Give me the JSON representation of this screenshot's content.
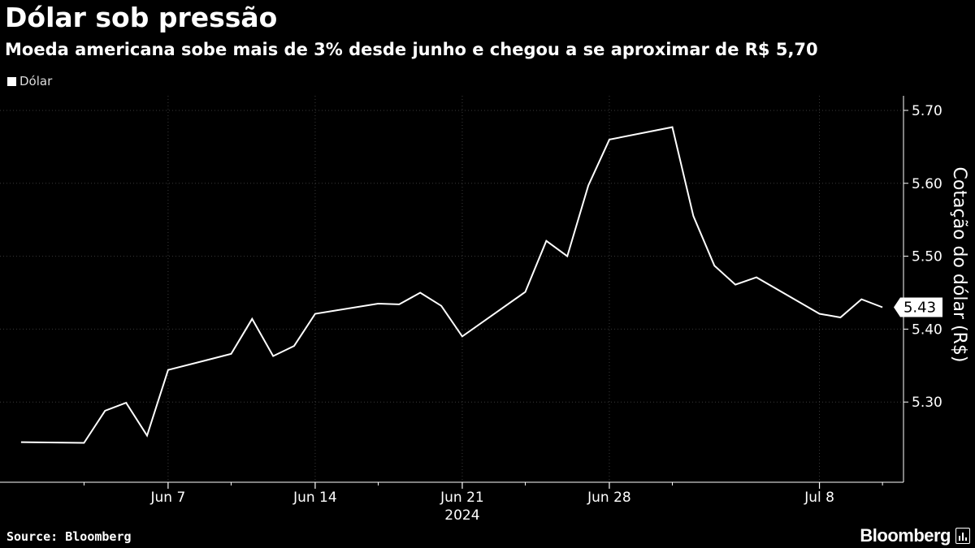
{
  "title": "Dólar sob pressão",
  "subtitle": "Moeda americana sobe mais de 3% desde junho e chegou a se aproximar de R$ 5,70",
  "source": "Source: Bloomberg",
  "logo": {
    "text": "Bloomberg",
    "icon": "bloomberg-chart-icon"
  },
  "colors": {
    "background": "#000000",
    "line": "#ffffff",
    "grid": "#444444",
    "text": "#ffffff"
  },
  "chart_data": {
    "type": "line",
    "title": "Dólar sob pressão",
    "subtitle": "Moeda americana sobe mais de 3% desde junho e chegou a se aproximar de R$ 5,70",
    "ylabel": "Cotação do dólar (R$)",
    "xlabel": "2024",
    "ylim": [
      5.19,
      5.72
    ],
    "y_ticks": [
      "5.30",
      "5.40",
      "5.50",
      "5.60",
      "5.70"
    ],
    "y_axis_position": "right",
    "x_ticks": [
      {
        "label": "Jun 7",
        "date": "2024-06-07"
      },
      {
        "label": "Jun 14",
        "date": "2024-06-14"
      },
      {
        "label": "Jun 21",
        "date": "2024-06-21"
      },
      {
        "label": "Jun 28",
        "date": "2024-06-28"
      },
      {
        "label": "Jul 8",
        "date": "2024-07-08"
      }
    ],
    "year_label": "2024",
    "legend": [
      "Dólar"
    ],
    "legend_position": "top-left",
    "grid": true,
    "last_value_label": "5.43",
    "series": [
      {
        "name": "Dólar",
        "points": [
          {
            "date": "2024-05-31",
            "value": 5.245
          },
          {
            "date": "2024-06-03",
            "value": 5.244
          },
          {
            "date": "2024-06-04",
            "value": 5.288
          },
          {
            "date": "2024-06-05",
            "value": 5.299
          },
          {
            "date": "2024-06-06",
            "value": 5.254
          },
          {
            "date": "2024-06-07",
            "value": 5.344
          },
          {
            "date": "2024-06-10",
            "value": 5.366
          },
          {
            "date": "2024-06-11",
            "value": 5.414
          },
          {
            "date": "2024-06-12",
            "value": 5.363
          },
          {
            "date": "2024-06-13",
            "value": 5.377
          },
          {
            "date": "2024-06-14",
            "value": 5.421
          },
          {
            "date": "2024-06-17",
            "value": 5.435
          },
          {
            "date": "2024-06-18",
            "value": 5.434
          },
          {
            "date": "2024-06-19",
            "value": 5.45
          },
          {
            "date": "2024-06-20",
            "value": 5.432
          },
          {
            "date": "2024-06-21",
            "value": 5.39
          },
          {
            "date": "2024-06-24",
            "value": 5.451
          },
          {
            "date": "2024-06-25",
            "value": 5.521
          },
          {
            "date": "2024-06-26",
            "value": 5.5
          },
          {
            "date": "2024-06-27",
            "value": 5.597
          },
          {
            "date": "2024-06-28",
            "value": 5.66
          },
          {
            "date": "2024-07-01",
            "value": 5.677
          },
          {
            "date": "2024-07-02",
            "value": 5.555
          },
          {
            "date": "2024-07-03",
            "value": 5.487
          },
          {
            "date": "2024-07-04",
            "value": 5.461
          },
          {
            "date": "2024-07-05",
            "value": 5.471
          },
          {
            "date": "2024-07-08",
            "value": 5.421
          },
          {
            "date": "2024-07-09",
            "value": 5.416
          },
          {
            "date": "2024-07-10",
            "value": 5.441
          },
          {
            "date": "2024-07-11",
            "value": 5.43
          }
        ]
      }
    ]
  }
}
